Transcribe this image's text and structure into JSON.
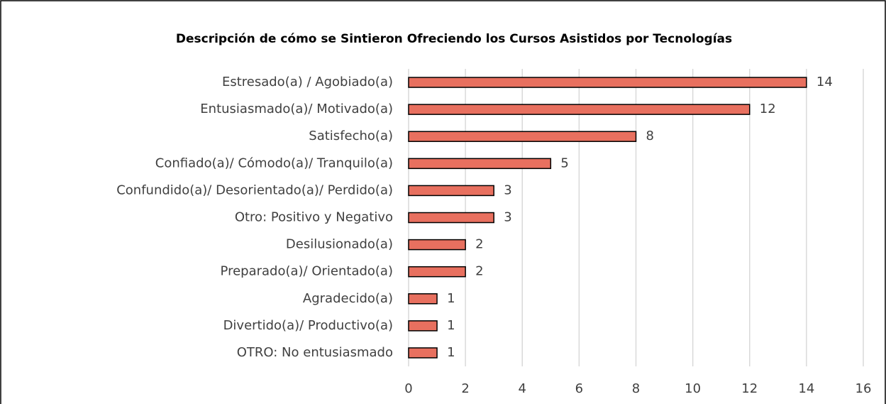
{
  "chart_data": {
    "type": "bar",
    "orientation": "horizontal",
    "title": "Descripción de cómo se Sintieron Ofreciendo los Cursos Asistidos por Tecnologías",
    "categories": [
      "Estresado(a) / Agobiado(a)",
      "Entusiasmado(a)/ Motivado(a)",
      "Satisfecho(a)",
      "Confiado(a)/ Cómodo(a)/ Tranquilo(a)",
      "Confundido(a)/ Desorientado(a)/ Perdido(a)",
      "Otro: Positivo y Negativo",
      "Desilusionado(a)",
      "Preparado(a)/ Orientado(a)",
      "Agradecido(a)",
      "Divertido(a)/ Productivo(a)",
      "OTRO: No entusiasmado"
    ],
    "values": [
      14,
      12,
      8,
      5,
      3,
      3,
      2,
      2,
      1,
      1,
      1
    ],
    "color": "#e8705f",
    "xlim": [
      0,
      16
    ],
    "xticks": [
      0,
      2,
      4,
      6,
      8,
      10,
      12,
      14,
      16
    ],
    "grid": true
  }
}
